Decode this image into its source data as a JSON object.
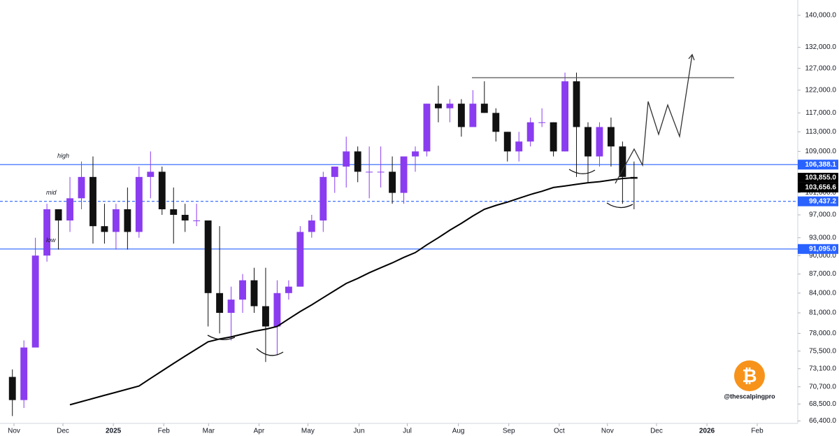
{
  "chart_data": {
    "type": "candlestick",
    "log_scale": true,
    "xlim": [
      -1.076,
      68.22
    ],
    "ylim": [
      66100,
      144000
    ],
    "xticks": [
      {
        "value": 0.14,
        "label": "Nov"
      },
      {
        "value": 4.39,
        "label": "Dec"
      },
      {
        "value": 8.77,
        "label": "2025"
      },
      {
        "value": 13.15,
        "label": "Feb"
      },
      {
        "value": 17.04,
        "label": "Mar"
      },
      {
        "value": 21.42,
        "label": "Apr"
      },
      {
        "value": 25.67,
        "label": "May"
      },
      {
        "value": 30.11,
        "label": "Jun"
      },
      {
        "value": 34.3,
        "label": "Jul"
      },
      {
        "value": 38.74,
        "label": "Aug"
      },
      {
        "value": 43.12,
        "label": "Sep"
      },
      {
        "value": 47.5,
        "label": "Oct"
      },
      {
        "value": 51.69,
        "label": "Nov"
      },
      {
        "value": 55.95,
        "label": "Dec"
      },
      {
        "value": 60.33,
        "label": "2026"
      },
      {
        "value": 64.7,
        "label": "Feb"
      }
    ],
    "yticks": [
      {
        "value": 140000,
        "label": "140,000.0"
      },
      {
        "value": 132000,
        "label": "132,000.0"
      },
      {
        "value": 127000,
        "label": "127,000.0"
      },
      {
        "value": 122000,
        "label": "122,000.0"
      },
      {
        "value": 117000,
        "label": "117,000.0"
      },
      {
        "value": 113000,
        "label": "113,000.0"
      },
      {
        "value": 109000,
        "label": "109,000.0"
      },
      {
        "value": 101000,
        "label": "101,000.0"
      },
      {
        "value": 97000,
        "label": "97,000.0"
      },
      {
        "value": 93000,
        "label": "93,000.0"
      },
      {
        "value": 90000,
        "label": "90,000.0"
      },
      {
        "value": 87000,
        "label": "87,000.0"
      },
      {
        "value": 84000,
        "label": "84,000.0"
      },
      {
        "value": 81000,
        "label": "81,000.0"
      },
      {
        "value": 78000,
        "label": "78,000.0"
      },
      {
        "value": 75500,
        "label": "75,500.0"
      },
      {
        "value": 73100,
        "label": "73,100.0"
      },
      {
        "value": 70700,
        "label": "70,700.0"
      },
      {
        "value": 68500,
        "label": "68,500.0"
      },
      {
        "value": 66400,
        "label": "66,400.0"
      }
    ],
    "up_color": "#8a3cf0",
    "down_color": "#111111",
    "open": [
      72000,
      69000,
      76000,
      90000,
      98000,
      96000,
      100000,
      104000,
      95000,
      94000,
      98000,
      94000,
      104000,
      105000,
      98000,
      97000,
      96000,
      96000,
      84000,
      81000,
      83000,
      86000,
      82000,
      79000,
      84000,
      85000,
      94000,
      96000,
      104000,
      106000,
      109000,
      105000,
      105000,
      105000,
      101000,
      108000,
      109000,
      119000,
      118000,
      119000,
      114000,
      119000,
      117000,
      113000,
      109000,
      111000,
      115000,
      115000,
      109000,
      124000,
      114000,
      108000,
      114000,
      110000,
      104000
    ],
    "high": [
      73000,
      77000,
      93000,
      99000,
      98000,
      104000,
      107000,
      108000,
      99000,
      99000,
      102000,
      106000,
      109000,
      106000,
      102000,
      99000,
      99000,
      96000,
      95000,
      85000,
      87000,
      88000,
      88000,
      86000,
      86000,
      95000,
      97000,
      105000,
      106000,
      112000,
      110000,
      110000,
      110000,
      108000,
      108000,
      110000,
      119000,
      123000,
      120000,
      120000,
      122000,
      124000,
      118000,
      113000,
      113000,
      116000,
      118000,
      115000,
      126000,
      126000,
      115000,
      115000,
      116000,
      111000,
      107000
    ],
    "low": [
      67000,
      68000,
      76000,
      89000,
      91000,
      94000,
      98000,
      92000,
      92000,
      91000,
      91000,
      93000,
      100000,
      97000,
      92000,
      94000,
      95000,
      79000,
      78000,
      77000,
      81000,
      81000,
      74000,
      75000,
      83000,
      85000,
      93000,
      94000,
      101000,
      102000,
      103000,
      100000,
      102000,
      99000,
      99000,
      105000,
      108000,
      115000,
      115000,
      112000,
      114000,
      117000,
      111000,
      107000,
      107000,
      110000,
      114000,
      108000,
      109000,
      104000,
      103000,
      106000,
      106000,
      99000,
      98000
    ],
    "close": [
      69000,
      76000,
      90000,
      98000,
      96000,
      100000,
      104000,
      95000,
      94000,
      98000,
      94000,
      104000,
      105000,
      98000,
      97000,
      96000,
      96000,
      84000,
      81000,
      83000,
      86000,
      82000,
      79000,
      84000,
      85000,
      94000,
      96000,
      104000,
      106000,
      109000,
      105000,
      105000,
      105000,
      101000,
      108000,
      109000,
      119000,
      118000,
      119000,
      114000,
      119000,
      117000,
      113000,
      109000,
      111000,
      115000,
      115000,
      109000,
      124000,
      114000,
      108000,
      114000,
      110000,
      104000,
      103656.6
    ],
    "ma": {
      "color": "#000000",
      "values": [
        null,
        null,
        null,
        null,
        null,
        68400,
        68800,
        69200,
        69600,
        70000,
        70400,
        70800,
        71800,
        72800,
        73800,
        74800,
        75800,
        76800,
        77200,
        77500,
        77900,
        78300,
        78600,
        79000,
        80100,
        81200,
        82200,
        83300,
        84400,
        85500,
        86300,
        87200,
        88000,
        88800,
        89700,
        90500,
        91800,
        93000,
        94300,
        95500,
        96800,
        98000,
        98700,
        99300,
        100000,
        100700,
        101300,
        102000,
        102300,
        102600,
        102900,
        103100,
        103400,
        103700,
        103855
      ]
    },
    "levels": [
      {
        "name": "high",
        "value": 106388.1,
        "label": "106,388.1",
        "color": "#2962ff",
        "dashed": false
      },
      {
        "name": "mid",
        "value": 99437.2,
        "label": "99,437.2",
        "color": "#2962ff",
        "dashed": true
      },
      {
        "name": "low",
        "value": 91095.0,
        "label": "91,095.0",
        "color": "#2962ff",
        "dashed": false
      }
    ],
    "price_labels": [
      {
        "value": 103855.0,
        "label": "103,855.0",
        "color": "#000000"
      },
      {
        "value": 103656.6,
        "label": "103,656.6",
        "color": "#000000"
      }
    ],
    "watermark": {
      "symbol": "₿",
      "text": "@thescalpingpro"
    }
  }
}
